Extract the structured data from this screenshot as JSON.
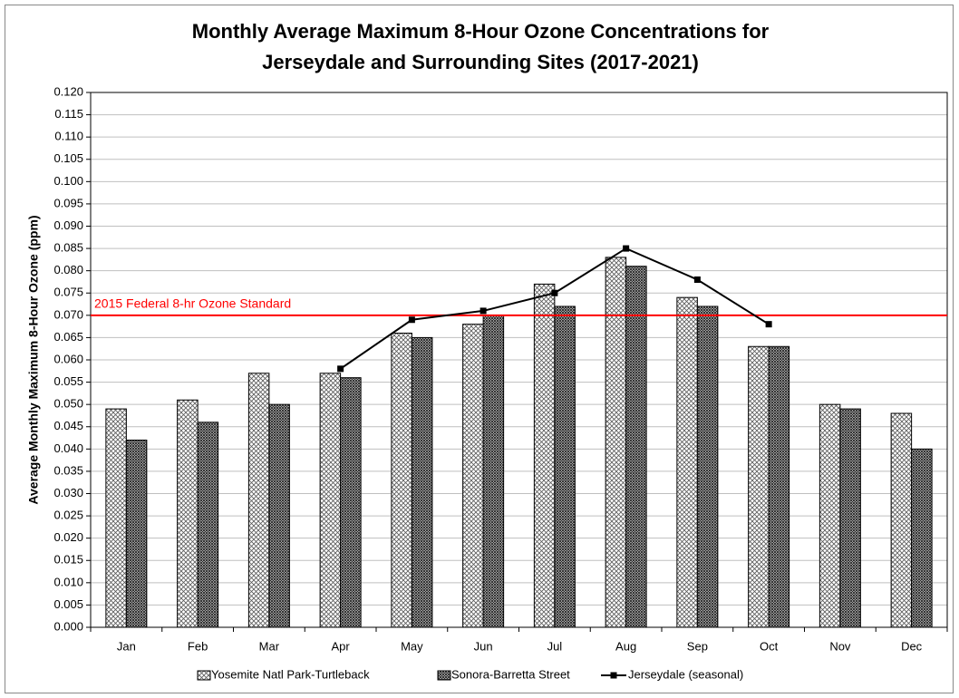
{
  "chart_data": {
    "type": "bar",
    "title": [
      "Monthly Average Maximum 8-Hour Ozone Concentrations for",
      "Jerseydale and Surrounding Sites (2017-2021)"
    ],
    "y_label": "Average Monthly Maximum 8-Hour Ozone (ppm)",
    "categories": [
      "Jan",
      "Feb",
      "Mar",
      "Apr",
      "May",
      "Jun",
      "Jul",
      "Aug",
      "Sep",
      "Oct",
      "Nov",
      "Dec"
    ],
    "series": [
      {
        "name": "Yosemite Natl Park-Turtleback",
        "type": "bar",
        "color": "#595959",
        "values": [
          0.049,
          0.051,
          0.057,
          0.057,
          0.066,
          0.068,
          0.077,
          0.083,
          0.074,
          0.063,
          0.05,
          0.048
        ]
      },
      {
        "name": "Sonora-Barretta Street",
        "type": "bar",
        "color": "#262626",
        "values": [
          0.042,
          0.046,
          0.05,
          0.056,
          0.065,
          0.07,
          0.072,
          0.081,
          0.072,
          0.063,
          0.049,
          0.04
        ]
      },
      {
        "name": "Jerseydale (seasonal)",
        "type": "line",
        "color": "#000000",
        "values": [
          null,
          null,
          null,
          0.058,
          0.069,
          0.071,
          0.075,
          0.085,
          0.078,
          0.068,
          null,
          null
        ]
      }
    ],
    "reference_line": {
      "value": 0.07,
      "label": "2015 Federal 8-hr Ozone Standard",
      "color": "#ff0000"
    },
    "ylim": [
      0,
      0.12
    ],
    "yticks": [
      {
        "value": 0,
        "label": "0.000"
      },
      {
        "value": 0.005,
        "label": "0.005"
      },
      {
        "value": 0.01,
        "label": "0.010"
      },
      {
        "value": 0.015,
        "label": "0.015"
      },
      {
        "value": 0.02,
        "label": "0.020"
      },
      {
        "value": 0.025,
        "label": "0.025"
      },
      {
        "value": 0.03,
        "label": "0.030"
      },
      {
        "value": 0.035,
        "label": "0.035"
      },
      {
        "value": 0.04,
        "label": "0.040"
      },
      {
        "value": 0.045,
        "label": "0.045"
      },
      {
        "value": 0.05,
        "label": "0.050"
      },
      {
        "value": 0.055,
        "label": "0.055"
      },
      {
        "value": 0.06,
        "label": "0.060"
      },
      {
        "value": 0.065,
        "label": "0.065"
      },
      {
        "value": 0.07,
        "label": "0.070"
      },
      {
        "value": 0.075,
        "label": "0.075"
      },
      {
        "value": 0.08,
        "label": "0.080"
      },
      {
        "value": 0.085,
        "label": "0.085"
      },
      {
        "value": 0.09,
        "label": "0.090"
      },
      {
        "value": 0.095,
        "label": "0.095"
      },
      {
        "value": 0.1,
        "label": "0.100"
      },
      {
        "value": 0.105,
        "label": "0.105"
      },
      {
        "value": 0.11,
        "label": "0.110"
      },
      {
        "value": 0.115,
        "label": "0.115"
      },
      {
        "value": 0.12,
        "label": "0.120"
      }
    ],
    "grid": true,
    "legend": "bottom"
  }
}
